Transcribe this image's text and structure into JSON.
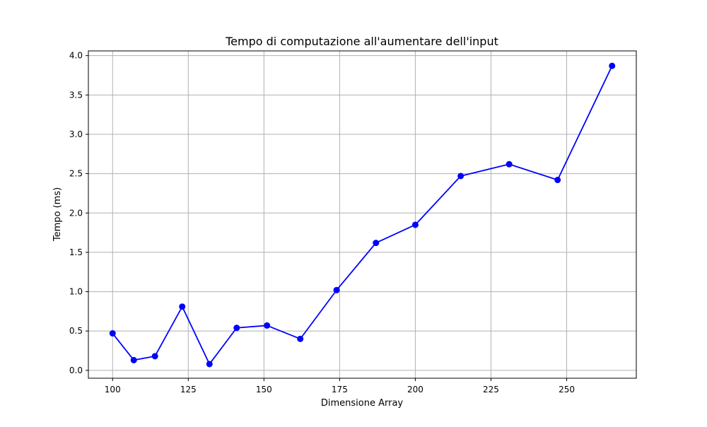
{
  "chart_data": {
    "type": "line",
    "title": "Tempo di computazione all'aumentare dell'input",
    "xlabel": "Dimensione Array",
    "ylabel": "Tempo (ms)",
    "xlim": [
      92,
      273
    ],
    "ylim": [
      -0.1,
      4.06
    ],
    "xticks": [
      100,
      125,
      150,
      175,
      200,
      225,
      250
    ],
    "xtick_labels": [
      "100",
      "125",
      "150",
      "175",
      "200",
      "225",
      "250"
    ],
    "yticks": [
      0.0,
      0.5,
      1.0,
      1.5,
      2.0,
      2.5,
      3.0,
      3.5,
      4.0
    ],
    "ytick_labels": [
      "0.0",
      "0.5",
      "1.0",
      "1.5",
      "2.0",
      "2.5",
      "3.0",
      "3.5",
      "4.0"
    ],
    "grid": true,
    "legend": "none",
    "series_color": "#0000ff",
    "grid_color": "#b0b0b0",
    "marker": "circle",
    "x": [
      100,
      107,
      114,
      123,
      132,
      141,
      151,
      162,
      174,
      187,
      200,
      215,
      231,
      247,
      265
    ],
    "y": [
      0.47,
      0.13,
      0.18,
      0.81,
      0.08,
      0.54,
      0.57,
      0.4,
      1.02,
      1.62,
      1.85,
      2.47,
      2.62,
      2.42,
      3.87
    ]
  }
}
